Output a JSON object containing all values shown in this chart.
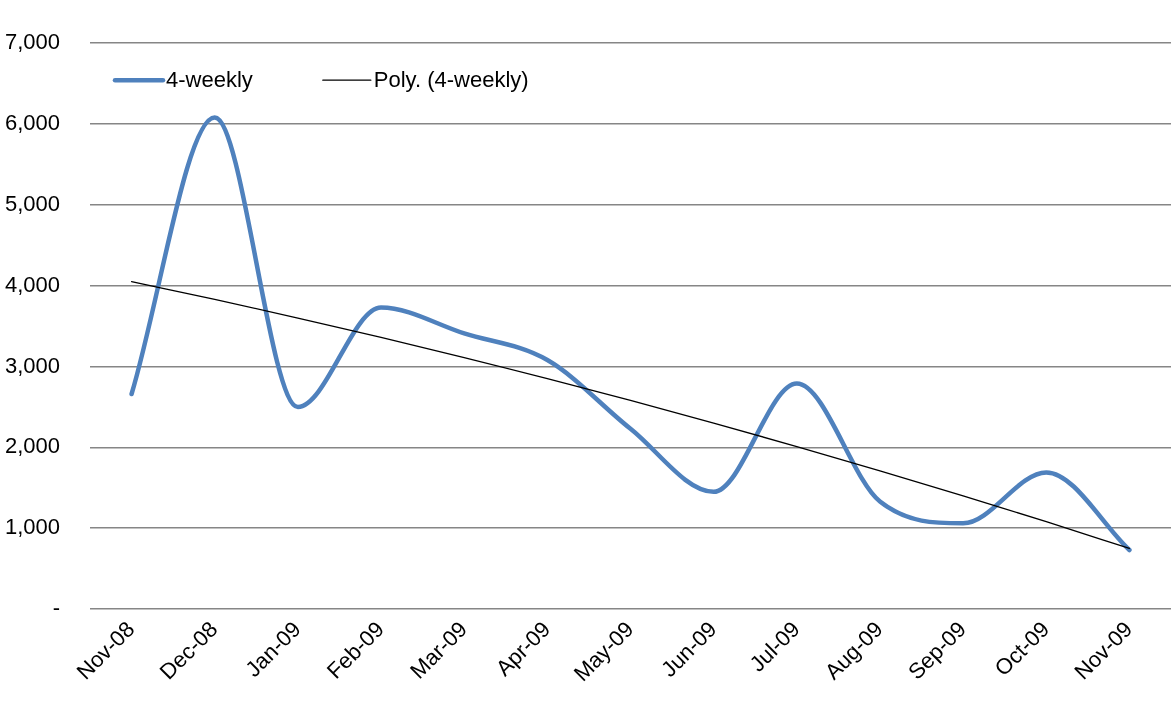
{
  "chart_data": {
    "type": "line",
    "categories": [
      "Nov-08",
      "Dec-08",
      "Jan-09",
      "Feb-09",
      "Mar-09",
      "Apr-09",
      "May-09",
      "Jun-09",
      "Jul-09",
      "Aug-09",
      "Sep-09",
      "Oct-09",
      "Nov-09"
    ],
    "series": [
      {
        "name": "4-weekly",
        "color": "#4f81bd",
        "values": [
          2660,
          6080,
          2500,
          3730,
          3410,
          3080,
          2230,
          1450,
          2790,
          1330,
          1060,
          1690,
          730
        ]
      },
      {
        "name": "Poly. (4-weekly)",
        "type": "line",
        "color": "#000000",
        "values": [
          4050,
          3830,
          3600,
          3360,
          3110,
          2850,
          2580,
          2300,
          2010,
          1710,
          1400,
          1080,
          750
        ]
      }
    ],
    "ylim": [
      0,
      7000
    ],
    "yticks": [
      {
        "value": 0,
        "label": "-"
      },
      {
        "value": 1000,
        "label": "1,000"
      },
      {
        "value": 2000,
        "label": "2,000"
      },
      {
        "value": 3000,
        "label": "3,000"
      },
      {
        "value": 4000,
        "label": "4,000"
      },
      {
        "value": 5000,
        "label": "5,000"
      },
      {
        "value": 6000,
        "label": "6,000"
      },
      {
        "value": 7000,
        "label": "7,000"
      }
    ],
    "grid": "y",
    "legend": "top left"
  }
}
